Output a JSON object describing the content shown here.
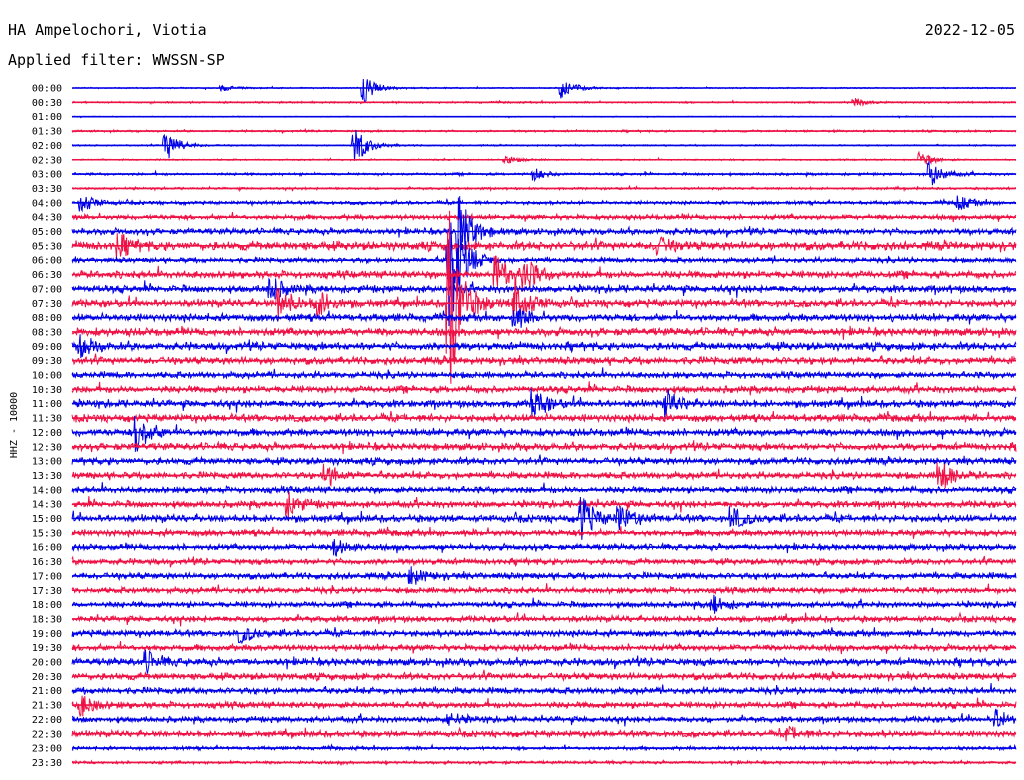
{
  "header": {
    "station": "HA Ampelochori, Viotia",
    "date": "2022-12-05",
    "filter": "Applied filter: WWSSN-SP"
  },
  "chart_data": {
    "type": "line",
    "ylabel": "HHZ - 10000",
    "row_labels": [
      "00:00",
      "00:30",
      "01:00",
      "01:30",
      "02:00",
      "02:30",
      "03:00",
      "03:30",
      "04:00",
      "04:30",
      "05:00",
      "05:30",
      "06:00",
      "06:30",
      "07:00",
      "07:30",
      "08:00",
      "08:30",
      "09:00",
      "09:30",
      "10:00",
      "10:30",
      "11:00",
      "11:30",
      "12:00",
      "12:30",
      "13:00",
      "13:30",
      "14:00",
      "14:30",
      "15:00",
      "15:30",
      "16:00",
      "16:30",
      "17:00",
      "17:30",
      "18:00",
      "18:30",
      "19:00",
      "19:30",
      "20:00",
      "20:30",
      "21:00",
      "21:30",
      "22:00",
      "22:30",
      "23:00",
      "23:30"
    ],
    "series_colors": [
      "#0000e6",
      "#ee1144"
    ],
    "noise_level": [
      0.5,
      0.7,
      0.4,
      0.8,
      0.6,
      0.6,
      1.0,
      0.9,
      1.4,
      2.0,
      2.5,
      3.5,
      2.0,
      3.0,
      3.0,
      3.0,
      3.0,
      3.2,
      3.2,
      3.0,
      2.6,
      2.8,
      3.0,
      3.0,
      3.0,
      3.0,
      2.8,
      2.8,
      2.6,
      2.8,
      3.0,
      2.6,
      2.4,
      2.4,
      2.6,
      2.4,
      2.4,
      2.5,
      2.6,
      2.6,
      3.0,
      2.8,
      2.6,
      2.6,
      2.4,
      2.4,
      1.4,
      1.2
    ],
    "events": [
      {
        "row": 0,
        "t": 0.31,
        "amp": 14
      },
      {
        "row": 0,
        "t": 0.52,
        "amp": 10
      },
      {
        "row": 0,
        "t": 0.16,
        "amp": 3
      },
      {
        "row": 1,
        "t": 0.83,
        "amp": 4
      },
      {
        "row": 4,
        "t": 0.1,
        "amp": 16
      },
      {
        "row": 4,
        "t": 0.3,
        "amp": 20
      },
      {
        "row": 5,
        "t": 0.46,
        "amp": 4
      },
      {
        "row": 5,
        "t": 0.9,
        "amp": 7
      },
      {
        "row": 6,
        "t": 0.49,
        "amp": 6
      },
      {
        "row": 6,
        "t": 0.91,
        "amp": 12
      },
      {
        "row": 8,
        "t": 0.01,
        "amp": 10
      },
      {
        "row": 8,
        "t": 0.94,
        "amp": 7
      },
      {
        "row": 10,
        "t": 0.41,
        "amp": 40
      },
      {
        "row": 11,
        "t": 0.05,
        "amp": 10
      },
      {
        "row": 11,
        "t": 0.62,
        "amp": 8
      },
      {
        "row": 12,
        "t": 0.4,
        "amp": 75
      },
      {
        "row": 13,
        "t": 0.45,
        "amp": 18
      },
      {
        "row": 13,
        "t": 0.48,
        "amp": 16
      },
      {
        "row": 14,
        "t": 0.21,
        "amp": 12
      },
      {
        "row": 15,
        "t": 0.22,
        "amp": 16
      },
      {
        "row": 15,
        "t": 0.26,
        "amp": 14
      },
      {
        "row": 15,
        "t": 0.4,
        "amp": 90
      },
      {
        "row": 15,
        "t": 0.47,
        "amp": 24
      },
      {
        "row": 16,
        "t": 0.47,
        "amp": 10
      },
      {
        "row": 18,
        "t": 0.01,
        "amp": 10
      },
      {
        "row": 22,
        "t": 0.49,
        "amp": 14
      },
      {
        "row": 22,
        "t": 0.63,
        "amp": 12
      },
      {
        "row": 24,
        "t": 0.07,
        "amp": 18
      },
      {
        "row": 27,
        "t": 0.92,
        "amp": 16
      },
      {
        "row": 27,
        "t": 0.27,
        "amp": 10
      },
      {
        "row": 29,
        "t": 0.23,
        "amp": 10
      },
      {
        "row": 30,
        "t": 0.54,
        "amp": 22
      },
      {
        "row": 30,
        "t": 0.58,
        "amp": 12
      },
      {
        "row": 30,
        "t": 0.7,
        "amp": 10
      },
      {
        "row": 32,
        "t": 0.28,
        "amp": 8
      },
      {
        "row": 34,
        "t": 0.36,
        "amp": 8
      },
      {
        "row": 36,
        "t": 0.68,
        "amp": 8
      },
      {
        "row": 38,
        "t": 0.18,
        "amp": 8
      },
      {
        "row": 40,
        "t": 0.08,
        "amp": 9
      },
      {
        "row": 43,
        "t": 0.01,
        "amp": 10
      },
      {
        "row": 44,
        "t": 0.98,
        "amp": 9
      },
      {
        "row": 44,
        "t": 0.4,
        "amp": 6
      },
      {
        "row": 45,
        "t": 0.76,
        "amp": 6
      }
    ]
  }
}
